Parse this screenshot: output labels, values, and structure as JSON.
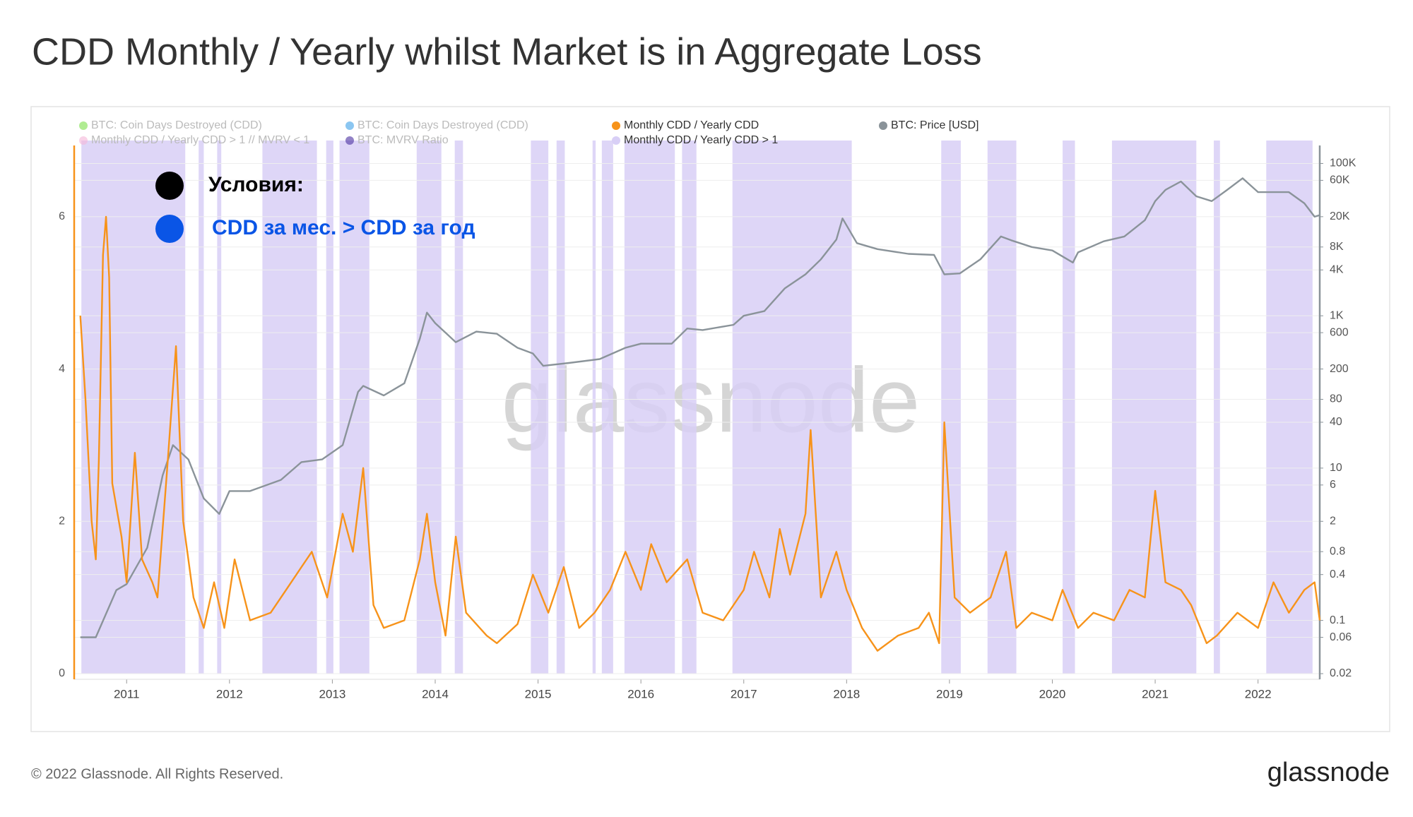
{
  "chart_data": {
    "type": "line",
    "title": "CDD Monthly / Yearly whilst Market is in Aggregate Loss",
    "watermark": "glassnode",
    "footer": "© 2022 Glassnode. All Rights Reserved.",
    "logo": "glassnode",
    "annotations": [
      {
        "text": "Условия:",
        "color": "#000000"
      },
      {
        "text": "CDD за мес. > CDD за год",
        "color": "#0a55e6"
      }
    ],
    "inactive_legend": [
      {
        "name": "BTC: Coin Days Destroyed (CDD)",
        "color": "#7be04a"
      },
      {
        "name": "BTC: Coin Days Destroyed (CDD)",
        "color": "#3ea0e8"
      },
      {
        "name": "Monthly CDD / Yearly CDD > 1 // MVRV < 1",
        "color": "#f5b5d9"
      },
      {
        "name": "BTC: MVRV Ratio",
        "color": "#4a2ea0"
      }
    ],
    "highlight": {
      "name": "Monthly CDD / Yearly CDD > 1",
      "color": "#d8cff6",
      "ranges": [
        [
          2010.56,
          2011.57
        ],
        [
          2011.7,
          2011.75
        ],
        [
          2011.88,
          2011.92
        ],
        [
          2012.32,
          2012.85
        ],
        [
          2012.94,
          2013.01
        ],
        [
          2013.07,
          2013.36
        ],
        [
          2013.82,
          2014.06
        ],
        [
          2014.19,
          2014.27
        ],
        [
          2014.93,
          2015.1
        ],
        [
          2015.18,
          2015.26
        ],
        [
          2015.53,
          2015.56
        ],
        [
          2015.62,
          2015.73
        ],
        [
          2015.84,
          2016.33
        ],
        [
          2016.4,
          2016.54
        ],
        [
          2016.89,
          2018.05
        ],
        [
          2018.92,
          2019.11
        ],
        [
          2019.37,
          2019.65
        ],
        [
          2020.1,
          2020.22
        ],
        [
          2020.58,
          2021.4
        ],
        [
          2021.57,
          2021.63
        ],
        [
          2022.08,
          2022.53
        ]
      ]
    },
    "xlim": [
      2010.49,
      2022.6
    ],
    "xticks": [
      2011,
      2012,
      2013,
      2014,
      2015,
      2016,
      2017,
      2018,
      2019,
      2020,
      2021,
      2022
    ],
    "ylim": [
      0,
      7
    ],
    "yticks": [
      0,
      2,
      4,
      6
    ],
    "y2lim": [
      0.02,
      200000
    ],
    "y2_log": true,
    "y2ticks": [
      0.02,
      0.06,
      0.1,
      0.4,
      0.8,
      2,
      6,
      10,
      40,
      80,
      200,
      600,
      {
        "value": 1000,
        "label": "1K"
      },
      {
        "value": 4000,
        "label": "4K"
      },
      {
        "value": 8000,
        "label": "8K"
      },
      {
        "value": 20000,
        "label": "20K"
      },
      {
        "value": 60000,
        "label": "60K"
      },
      {
        "value": 100000,
        "label": "100K"
      }
    ],
    "grid": true,
    "series": [
      {
        "name": "Monthly CDD / Yearly CDD",
        "color": "#f7931a",
        "axis": "y",
        "x": [
          2010.55,
          2010.6,
          2010.66,
          2010.7,
          2010.73,
          2010.77,
          2010.8,
          2010.83,
          2010.86,
          2010.95,
          2011.0,
          2011.08,
          2011.15,
          2011.25,
          2011.3,
          2011.4,
          2011.48,
          2011.55,
          2011.65,
          2011.75,
          2011.85,
          2011.95,
          2012.05,
          2012.2,
          2012.4,
          2012.55,
          2012.7,
          2012.8,
          2012.95,
          2013.1,
          2013.2,
          2013.3,
          2013.4,
          2013.5,
          2013.7,
          2013.85,
          2013.92,
          2014.0,
          2014.1,
          2014.2,
          2014.3,
          2014.5,
          2014.6,
          2014.8,
          2014.95,
          2015.1,
          2015.25,
          2015.4,
          2015.55,
          2015.7,
          2015.85,
          2016.0,
          2016.1,
          2016.25,
          2016.45,
          2016.6,
          2016.8,
          2017.0,
          2017.1,
          2017.25,
          2017.35,
          2017.45,
          2017.6,
          2017.65,
          2017.75,
          2017.9,
          2018.0,
          2018.15,
          2018.3,
          2018.5,
          2018.7,
          2018.8,
          2018.9,
          2018.95,
          2019.05,
          2019.2,
          2019.4,
          2019.55,
          2019.65,
          2019.8,
          2020.0,
          2020.1,
          2020.25,
          2020.4,
          2020.6,
          2020.75,
          2020.9,
          2021.0,
          2021.1,
          2021.25,
          2021.35,
          2021.5,
          2021.6,
          2021.8,
          2022.0,
          2022.15,
          2022.3,
          2022.45,
          2022.55,
          2022.6
        ],
        "values": [
          4.7,
          3.6,
          2,
          1.5,
          2.8,
          5.5,
          6,
          5.2,
          2.5,
          1.8,
          1.2,
          2.9,
          1.5,
          1.2,
          1.0,
          2.8,
          4.3,
          2.0,
          1.0,
          0.6,
          1.2,
          0.6,
          1.5,
          0.7,
          0.8,
          1.1,
          1.4,
          1.6,
          1.0,
          2.1,
          1.6,
          2.7,
          0.9,
          0.6,
          0.7,
          1.5,
          2.1,
          1.2,
          0.5,
          1.8,
          0.8,
          0.5,
          0.4,
          0.65,
          1.3,
          0.8,
          1.4,
          0.6,
          0.8,
          1.1,
          1.6,
          1.1,
          1.7,
          1.2,
          1.5,
          0.8,
          0.7,
          1.1,
          1.6,
          1.0,
          1.9,
          1.3,
          2.1,
          3.2,
          1.0,
          1.6,
          1.1,
          0.6,
          0.3,
          0.5,
          0.6,
          0.8,
          0.4,
          3.3,
          1.0,
          0.8,
          1.0,
          1.6,
          0.6,
          0.8,
          0.7,
          1.1,
          0.6,
          0.8,
          0.7,
          1.1,
          1.0,
          2.4,
          1.2,
          1.1,
          0.9,
          0.4,
          0.5,
          0.8,
          0.6,
          1.2,
          0.8,
          1.1,
          1.2,
          0.7
        ]
      },
      {
        "name": "BTC: Price [USD]",
        "color": "#8a9399",
        "axis": "y2",
        "x": [
          2010.55,
          2010.7,
          2010.9,
          2011.0,
          2011.2,
          2011.35,
          2011.45,
          2011.6,
          2011.75,
          2011.9,
          2012.0,
          2012.2,
          2012.5,
          2012.7,
          2012.9,
          2013.1,
          2013.25,
          2013.3,
          2013.5,
          2013.7,
          2013.85,
          2013.92,
          2014.0,
          2014.2,
          2014.4,
          2014.6,
          2014.8,
          2014.95,
          2015.05,
          2015.3,
          2015.6,
          2015.85,
          2016.0,
          2016.3,
          2016.45,
          2016.6,
          2016.9,
          2017.0,
          2017.2,
          2017.4,
          2017.6,
          2017.75,
          2017.9,
          2017.96,
          2018.1,
          2018.3,
          2018.6,
          2018.85,
          2018.95,
          2019.1,
          2019.3,
          2019.5,
          2019.6,
          2019.8,
          2020.0,
          2020.2,
          2020.25,
          2020.5,
          2020.7,
          2020.9,
          2021.0,
          2021.1,
          2021.25,
          2021.4,
          2021.55,
          2021.7,
          2021.85,
          2022.0,
          2022.3,
          2022.45,
          2022.55,
          2022.6
        ],
        "values": [
          0.06,
          0.06,
          0.25,
          0.3,
          0.9,
          8,
          20,
          13,
          4,
          2.5,
          5,
          5,
          7,
          12,
          13,
          20,
          100,
          120,
          90,
          130,
          500,
          1100,
          800,
          450,
          620,
          580,
          380,
          320,
          220,
          240,
          270,
          380,
          430,
          430,
          680,
          650,
          760,
          1000,
          1150,
          2300,
          3500,
          5500,
          10000,
          19000,
          9000,
          7500,
          6500,
          6300,
          3500,
          3600,
          5500,
          11000,
          9800,
          8000,
          7200,
          5000,
          6800,
          9500,
          11000,
          18000,
          32000,
          45000,
          58000,
          37000,
          32000,
          45000,
          64000,
          42000,
          42000,
          30000,
          20000,
          21000
        ]
      }
    ]
  }
}
